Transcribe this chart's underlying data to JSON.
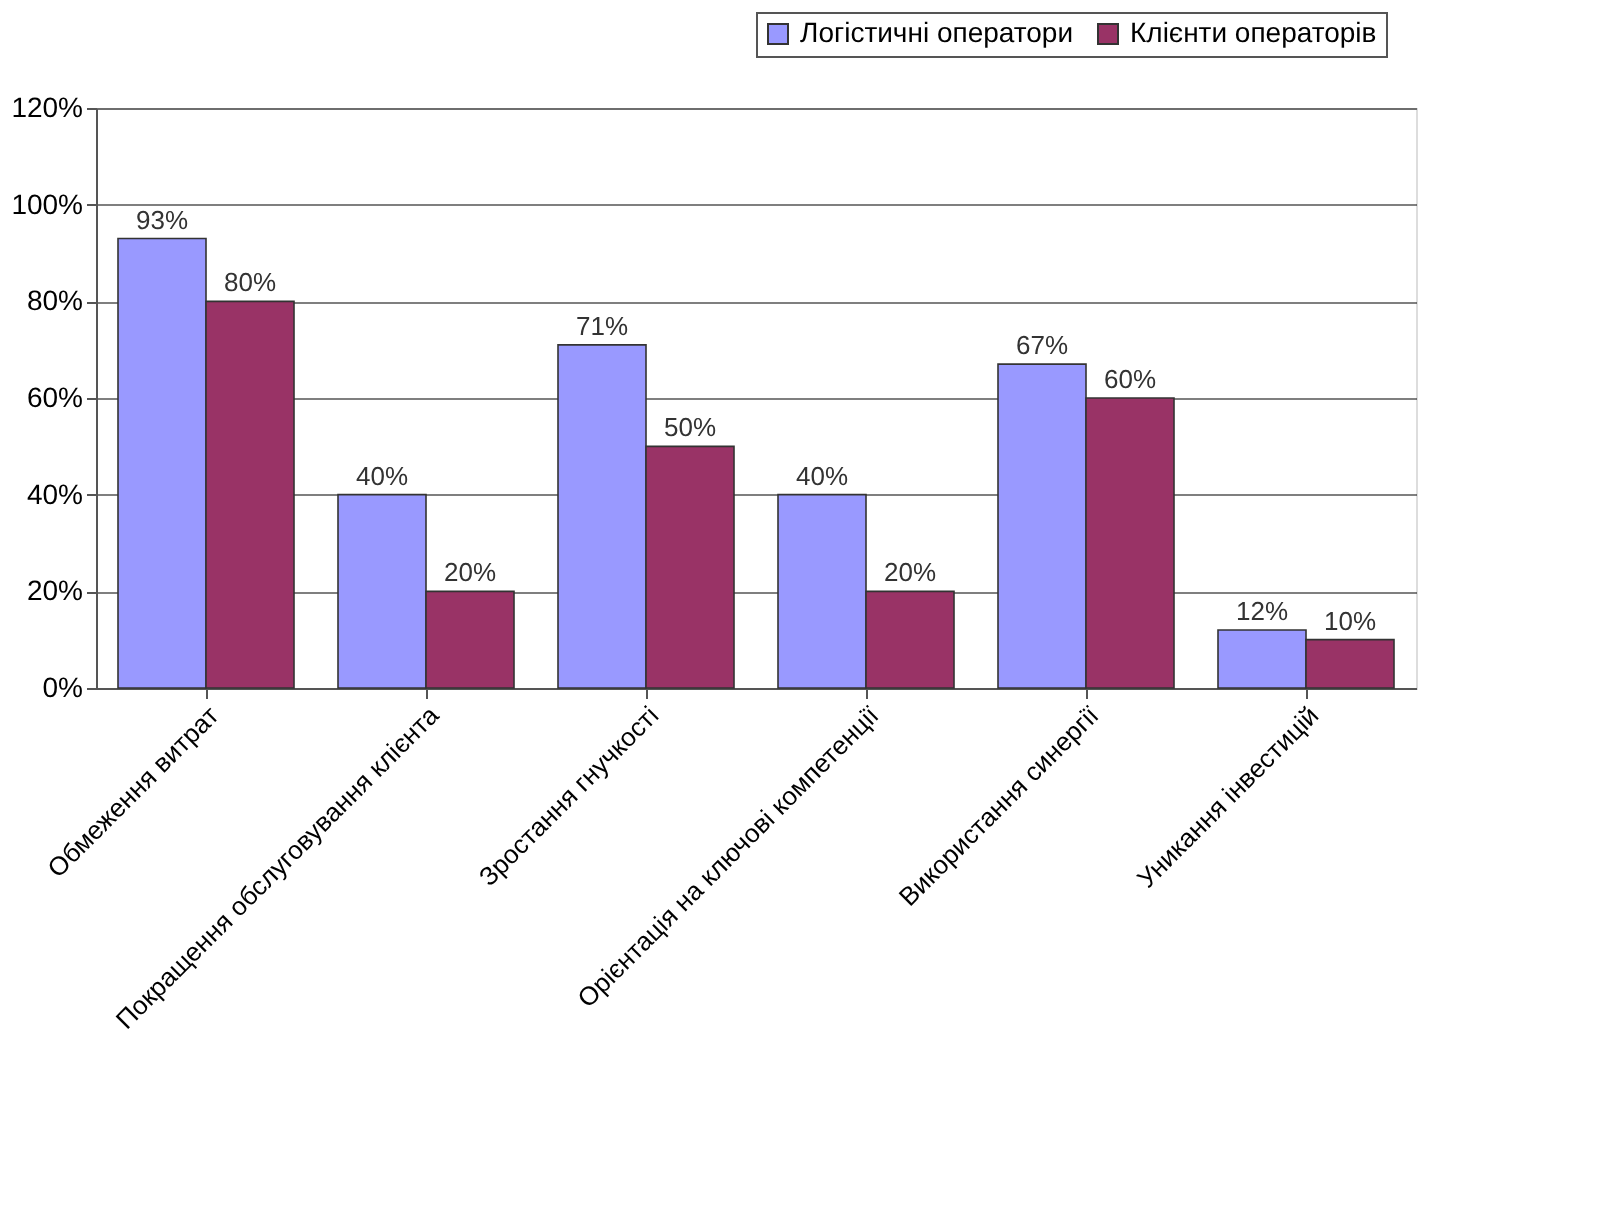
{
  "chart_data": {
    "type": "bar",
    "categories": [
      "Обмеження витрат",
      "Покращення обслуговування клієнта",
      "Зростання гнучкості",
      "Орієнтація на ключові компетенції",
      "Використання синергії",
      "Уникання інвестицій"
    ],
    "series": [
      {
        "name": "Логістичні оператори",
        "color": "#9999ff",
        "values": [
          93,
          40,
          71,
          40,
          67,
          12
        ],
        "value_labels": [
          "93%",
          "40%",
          "71%",
          "40%",
          "67%",
          "12%"
        ]
      },
      {
        "name": "Клієнти операторів",
        "color": "#993366",
        "values": [
          80,
          20,
          50,
          20,
          60,
          10
        ],
        "value_labels": [
          "80%",
          "20%",
          "50%",
          "20%",
          "60%",
          "10%"
        ]
      }
    ],
    "ylim": [
      0,
      120
    ],
    "yticks": [
      {
        "value": 0,
        "label": "0%"
      },
      {
        "value": 20,
        "label": "20%"
      },
      {
        "value": 40,
        "label": "40%"
      },
      {
        "value": 60,
        "label": "60%"
      },
      {
        "value": 80,
        "label": "80%"
      },
      {
        "value": 100,
        "label": "100%"
      },
      {
        "value": 120,
        "label": "120%"
      }
    ],
    "grid": "y",
    "legend": "top right"
  }
}
